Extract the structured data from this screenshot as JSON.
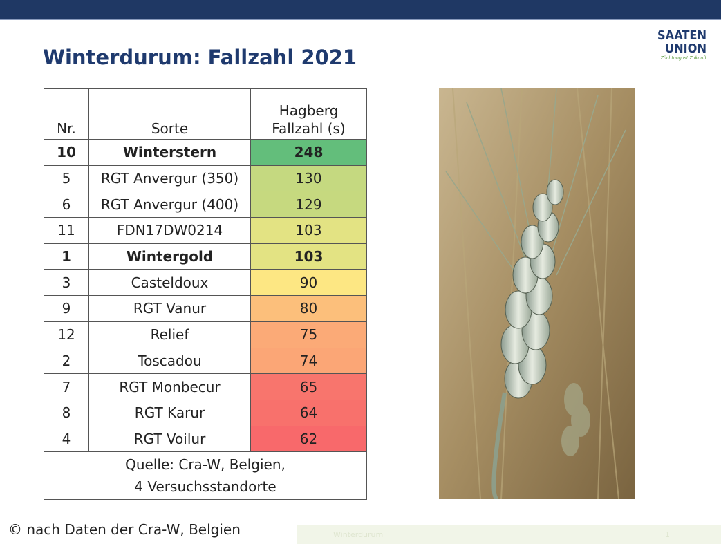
{
  "title": "Winterdurum: Fallzahl 2021",
  "logo": {
    "line1": "SAATEN",
    "line2": "UNION",
    "tagline": "Züchtung ist Zukunft"
  },
  "table": {
    "header": [
      "Nr.",
      "Sorte",
      "Hagberg Fallzahl (s)"
    ],
    "rows": [
      {
        "nr": 10,
        "sorte": "Winterstern",
        "value": 248,
        "bold": true,
        "color": "#63be7b"
      },
      {
        "nr": 5,
        "sorte": "RGT Anvergur (350)",
        "value": 130,
        "bold": false,
        "color": "#c5d980"
      },
      {
        "nr": 6,
        "sorte": "RGT Anvergur (400)",
        "value": 129,
        "bold": false,
        "color": "#c6d97f"
      },
      {
        "nr": 11,
        "sorte": "FDN17DW0214",
        "value": 103,
        "bold": false,
        "color": "#e3e383"
      },
      {
        "nr": 1,
        "sorte": "Wintergold",
        "value": 103,
        "bold": true,
        "color": "#e3e383"
      },
      {
        "nr": 3,
        "sorte": "Casteldoux",
        "value": 90,
        "bold": false,
        "color": "#fde783"
      },
      {
        "nr": 9,
        "sorte": "RGT Vanur",
        "value": 80,
        "bold": false,
        "color": "#fcbf7b"
      },
      {
        "nr": 12,
        "sorte": "Relief",
        "value": 75,
        "bold": false,
        "color": "#fbaa77"
      },
      {
        "nr": 2,
        "sorte": "Toscadou",
        "value": 74,
        "bold": false,
        "color": "#fba676"
      },
      {
        "nr": 7,
        "sorte": "RGT Monbecur",
        "value": 65,
        "bold": false,
        "color": "#f8756d"
      },
      {
        "nr": 8,
        "sorte": "RGT Karur",
        "value": 64,
        "bold": false,
        "color": "#f8716c"
      },
      {
        "nr": 4,
        "sorte": "RGT Voilur",
        "value": 62,
        "bold": false,
        "color": "#f8696b"
      }
    ],
    "source": [
      "Quelle: Cra-W, Belgien,",
      "4 Versuchsstandorte"
    ]
  },
  "copyright": "© nach Daten der Cra-W, Belgien",
  "footer": {
    "label": "Winterdurum",
    "page": "1"
  }
}
